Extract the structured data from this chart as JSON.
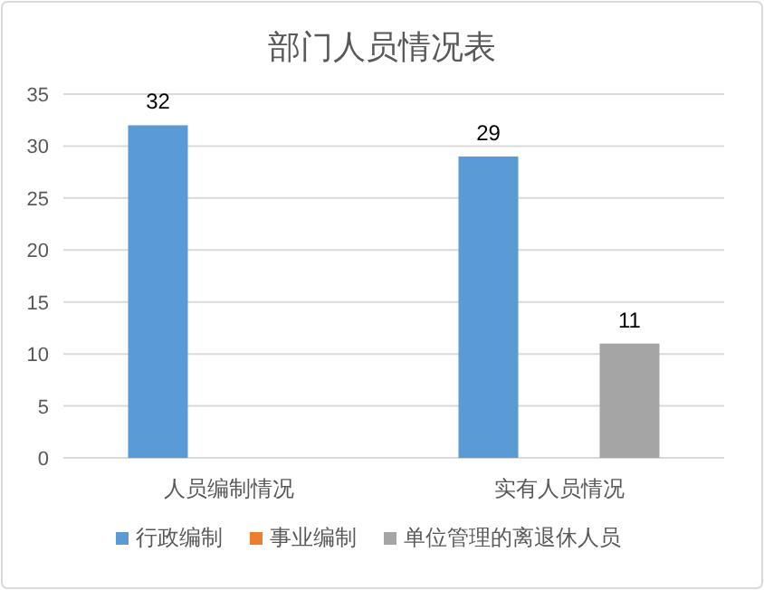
{
  "chart_data": {
    "type": "bar",
    "title": "部门人员情况表",
    "categories": [
      "人员编制情况",
      "实有人员情况"
    ],
    "series": [
      {
        "name": "行政编制",
        "color": "#5b9bd5",
        "values": [
          32,
          29
        ]
      },
      {
        "name": "事业编制",
        "color": "#ed7d31",
        "values": [
          null,
          null
        ]
      },
      {
        "name": "单位管理的离退休人员",
        "color": "#a5a5a5",
        "values": [
          null,
          11
        ]
      }
    ],
    "ylim": [
      0,
      35
    ],
    "yticks": [
      0,
      5,
      10,
      15,
      20,
      25,
      30,
      35
    ],
    "grid": "y",
    "legend": "bottom",
    "data_labels": true
  }
}
